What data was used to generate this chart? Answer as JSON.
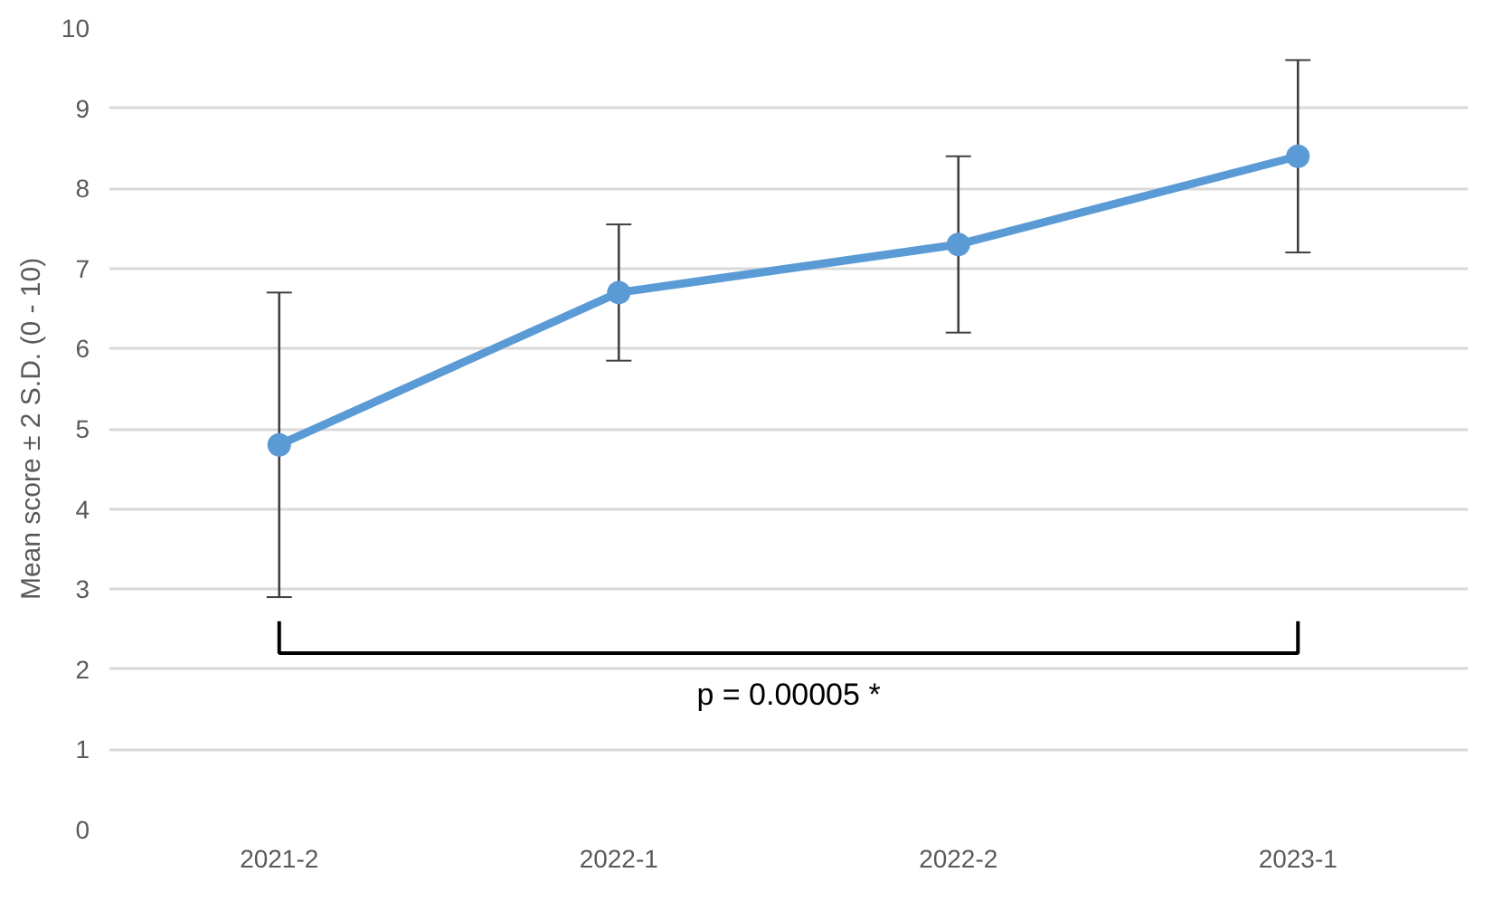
{
  "chart_data": {
    "type": "line",
    "ylabel": "Mean score ± 2 S.D. (0 - 10)",
    "categories": [
      "2021-2",
      "2022-1",
      "2022-2",
      "2023-1"
    ],
    "series": [
      {
        "color": "#5b9bd5",
        "values": [
          4.8,
          6.7,
          7.3,
          8.4
        ],
        "errors": [
          [
            2.9,
            6.7
          ],
          [
            5.85,
            7.55
          ],
          [
            6.2,
            8.4
          ],
          [
            7.2,
            9.6
          ]
        ]
      }
    ],
    "ylim": [
      0,
      10
    ],
    "yticks": [
      0,
      1,
      2,
      3,
      4,
      5,
      6,
      7,
      8,
      9,
      10
    ],
    "grid": "y",
    "marker": "circle",
    "line_style": "solid",
    "annotations": [
      "p = 0.00005 *"
    ]
  }
}
